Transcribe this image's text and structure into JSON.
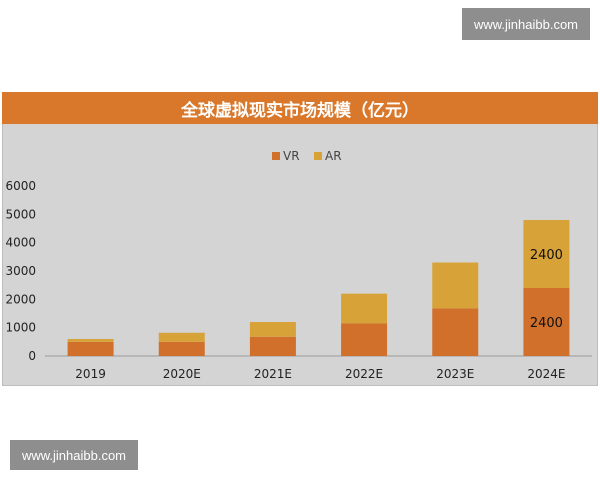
{
  "watermark": {
    "top": "www.jinhaibb.com",
    "bottom": "www.jinhaibb.com"
  },
  "chart_data": {
    "type": "bar",
    "stacked": true,
    "title": "全球虚拟现实市场规模（亿元）",
    "categories": [
      "2019",
      "2020E",
      "2021E",
      "2022E",
      "2023E",
      "2024E"
    ],
    "series": [
      {
        "name": "VR",
        "color": "#d0702b",
        "values": [
          500,
          500,
          680,
          1150,
          1680,
          2400
        ]
      },
      {
        "name": "AR",
        "color": "#d7a339",
        "values": [
          100,
          320,
          520,
          1050,
          1620,
          2400
        ]
      }
    ],
    "bar_labels": [
      {
        "category": "2024E",
        "series": "VR",
        "text": "2400"
      },
      {
        "category": "2024E",
        "series": "AR",
        "text": "2400"
      }
    ],
    "ylim": [
      0,
      6000
    ],
    "yticks": [
      0,
      1000,
      2000,
      3000,
      4000,
      5000,
      6000
    ],
    "legend_position": "top-center",
    "grid": false,
    "colors": {
      "header": "#d9782a",
      "plot_background": "#d4d4d4"
    }
  }
}
